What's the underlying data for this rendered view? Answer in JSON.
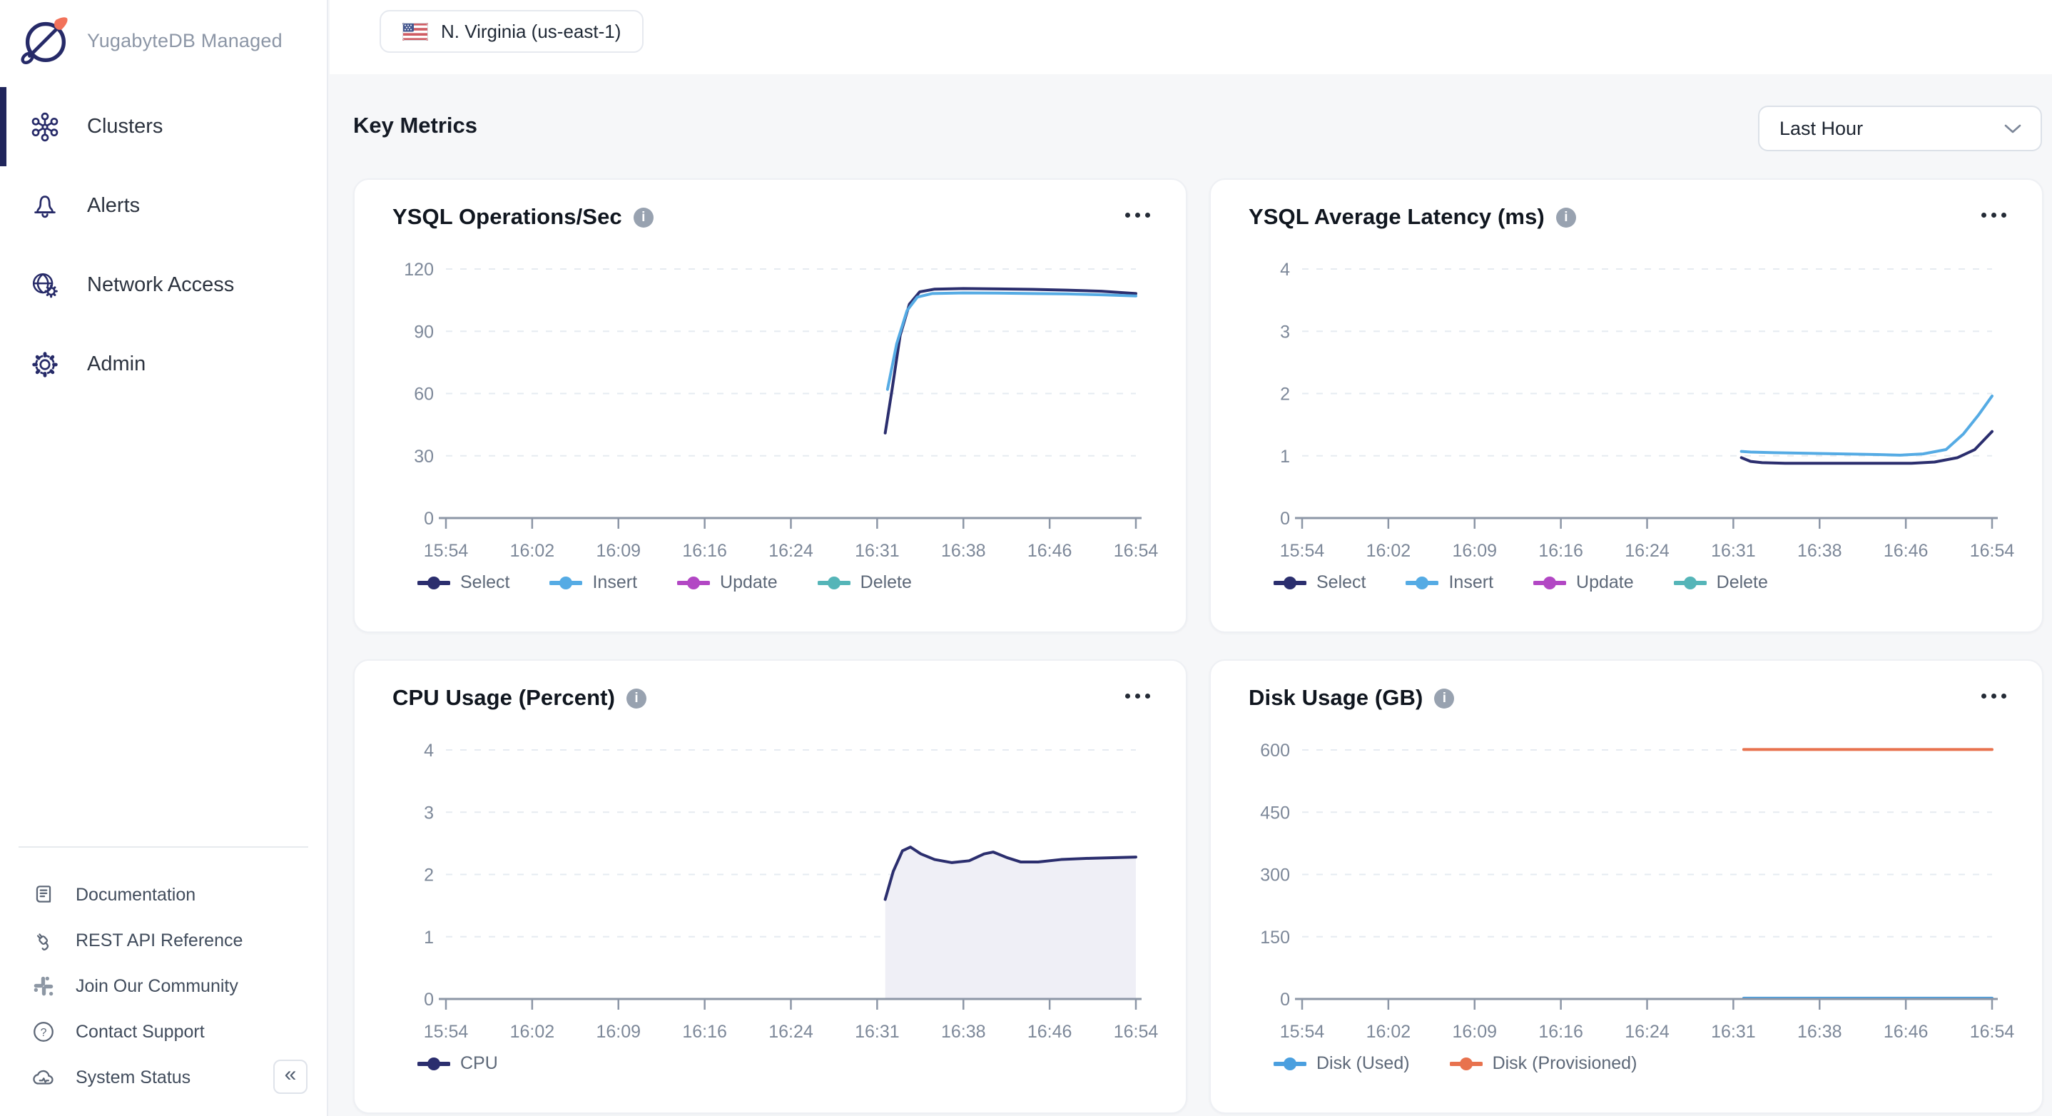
{
  "ui": {
    "info_glyph": "i",
    "collapse_glyph": "«"
  },
  "sidebar": {
    "brand": "YugabyteDB Managed",
    "nav": [
      {
        "label": "Clusters",
        "icon": "clusters-icon",
        "active": true
      },
      {
        "label": "Alerts",
        "icon": "bell-icon",
        "active": false
      },
      {
        "label": "Network Access",
        "icon": "globe-gear-icon",
        "active": false
      },
      {
        "label": "Admin",
        "icon": "gear-icon",
        "active": false
      }
    ],
    "footer_links": [
      {
        "label": "Documentation",
        "icon": "book-icon"
      },
      {
        "label": "REST API Reference",
        "icon": "plug-icon"
      },
      {
        "label": "Join Our Community",
        "icon": "slack-icon"
      },
      {
        "label": "Contact Support",
        "icon": "question-icon"
      },
      {
        "label": "System Status",
        "icon": "cloud-status-icon"
      }
    ]
  },
  "header": {
    "region_chip": "N. Virginia (us-east-1)",
    "section_title": "Key Metrics",
    "time_range_value": "Last Hour"
  },
  "colors": {
    "select": "#2b2e6e",
    "insert": "#55abe4",
    "update": "#b247c4",
    "delete": "#55b5b8",
    "cpu": "#2b2e6e",
    "cpu_fill": "#efeff6",
    "disk_used": "#4a9fdf",
    "disk_provisioned": "#e8724e",
    "grid": "#e6ebf1",
    "axis": "#8c96a6",
    "tick_text": "#7d8899"
  },
  "chart_data": [
    {
      "type": "line",
      "title": "YSQL Operations/Sec",
      "x_ticks": [
        "15:54",
        "16:02",
        "16:09",
        "16:16",
        "16:24",
        "16:31",
        "16:38",
        "16:46",
        "16:54"
      ],
      "x_range_minutes": [
        0,
        60
      ],
      "y_ticks": [
        0,
        30,
        60,
        90,
        120
      ],
      "ylim": [
        0,
        120
      ],
      "grid": "dashed-horizontal",
      "legend_position": "bottom",
      "series": [
        {
          "name": "Select",
          "color": "#2b2e6e",
          "points": [
            [
              38.2,
              41
            ],
            [
              38.8,
              62
            ],
            [
              39.5,
              88
            ],
            [
              40.3,
              103
            ],
            [
              41.2,
              109
            ],
            [
              42.5,
              110.3
            ],
            [
              45,
              110.6
            ],
            [
              48,
              110.4
            ],
            [
              51,
              110.2
            ],
            [
              54,
              109.8
            ],
            [
              57,
              109.3
            ],
            [
              60,
              108.2
            ]
          ]
        },
        {
          "name": "Insert",
          "color": "#55abe4",
          "points": [
            [
              38.4,
              62
            ],
            [
              39.2,
              84
            ],
            [
              40.1,
              100
            ],
            [
              41,
              106.5
            ],
            [
              42.3,
              108.2
            ],
            [
              45,
              108.5
            ],
            [
              48,
              108.4
            ],
            [
              51,
              108.2
            ],
            [
              54,
              108
            ],
            [
              57,
              107.6
            ],
            [
              60,
              107
            ]
          ]
        },
        {
          "name": "Update",
          "color": "#b247c4",
          "points": []
        },
        {
          "name": "Delete",
          "color": "#55b5b8",
          "points": []
        }
      ]
    },
    {
      "type": "line",
      "title": "YSQL Average Latency (ms)",
      "x_ticks": [
        "15:54",
        "16:02",
        "16:09",
        "16:16",
        "16:24",
        "16:31",
        "16:38",
        "16:46",
        "16:54"
      ],
      "x_range_minutes": [
        0,
        60
      ],
      "y_ticks": [
        0,
        1,
        2,
        3,
        4
      ],
      "ylim": [
        0,
        4
      ],
      "grid": "dashed-horizontal",
      "legend_position": "bottom",
      "series": [
        {
          "name": "Select",
          "color": "#2b2e6e",
          "points": [
            [
              38.2,
              0.97
            ],
            [
              39,
              0.91
            ],
            [
              40,
              0.89
            ],
            [
              42,
              0.88
            ],
            [
              46,
              0.88
            ],
            [
              50,
              0.88
            ],
            [
              53,
              0.88
            ],
            [
              55,
              0.9
            ],
            [
              57,
              0.97
            ],
            [
              58.5,
              1.1
            ],
            [
              60,
              1.39
            ]
          ]
        },
        {
          "name": "Insert",
          "color": "#55abe4",
          "points": [
            [
              38.2,
              1.07
            ],
            [
              39,
              1.06
            ],
            [
              41,
              1.05
            ],
            [
              44,
              1.04
            ],
            [
              47,
              1.03
            ],
            [
              50,
              1.02
            ],
            [
              52,
              1.01
            ],
            [
              54,
              1.03
            ],
            [
              56,
              1.1
            ],
            [
              57.5,
              1.35
            ],
            [
              58.8,
              1.65
            ],
            [
              60,
              1.96
            ]
          ]
        },
        {
          "name": "Update",
          "color": "#b247c4",
          "points": []
        },
        {
          "name": "Delete",
          "color": "#55b5b8",
          "points": []
        }
      ]
    },
    {
      "type": "area",
      "title": "CPU Usage (Percent)",
      "x_ticks": [
        "15:54",
        "16:02",
        "16:09",
        "16:16",
        "16:24",
        "16:31",
        "16:38",
        "16:46",
        "16:54"
      ],
      "x_range_minutes": [
        0,
        60
      ],
      "y_ticks": [
        0,
        1,
        2,
        3,
        4
      ],
      "ylim": [
        0,
        4
      ],
      "grid": "dashed-horizontal",
      "legend_position": "bottom",
      "series": [
        {
          "name": "CPU",
          "color": "#2b2e6e",
          "fill": "#efeff6",
          "points": [
            [
              38.2,
              1.6
            ],
            [
              38.9,
              2.05
            ],
            [
              39.7,
              2.38
            ],
            [
              40.4,
              2.44
            ],
            [
              41.3,
              2.33
            ],
            [
              42.5,
              2.24
            ],
            [
              44,
              2.19
            ],
            [
              45.5,
              2.22
            ],
            [
              46.8,
              2.33
            ],
            [
              47.6,
              2.36
            ],
            [
              48.8,
              2.27
            ],
            [
              50,
              2.2
            ],
            [
              51.5,
              2.2
            ],
            [
              53.5,
              2.24
            ],
            [
              56,
              2.26
            ],
            [
              58,
              2.27
            ],
            [
              60,
              2.28
            ]
          ]
        }
      ]
    },
    {
      "type": "line",
      "title": "Disk Usage (GB)",
      "x_ticks": [
        "15:54",
        "16:02",
        "16:09",
        "16:16",
        "16:24",
        "16:31",
        "16:38",
        "16:46",
        "16:54"
      ],
      "x_range_minutes": [
        0,
        60
      ],
      "y_ticks": [
        0,
        150,
        300,
        450,
        600
      ],
      "ylim": [
        0,
        600
      ],
      "grid": "dashed-horizontal",
      "legend_position": "bottom",
      "series": [
        {
          "name": "Disk (Used)",
          "color": "#4a9fdf",
          "points": [
            [
              38.4,
              2
            ],
            [
              60,
              2
            ]
          ]
        },
        {
          "name": "Disk (Provisioned)",
          "color": "#e8724e",
          "points": [
            [
              38.4,
              601
            ],
            [
              60,
              601
            ]
          ]
        }
      ]
    }
  ]
}
